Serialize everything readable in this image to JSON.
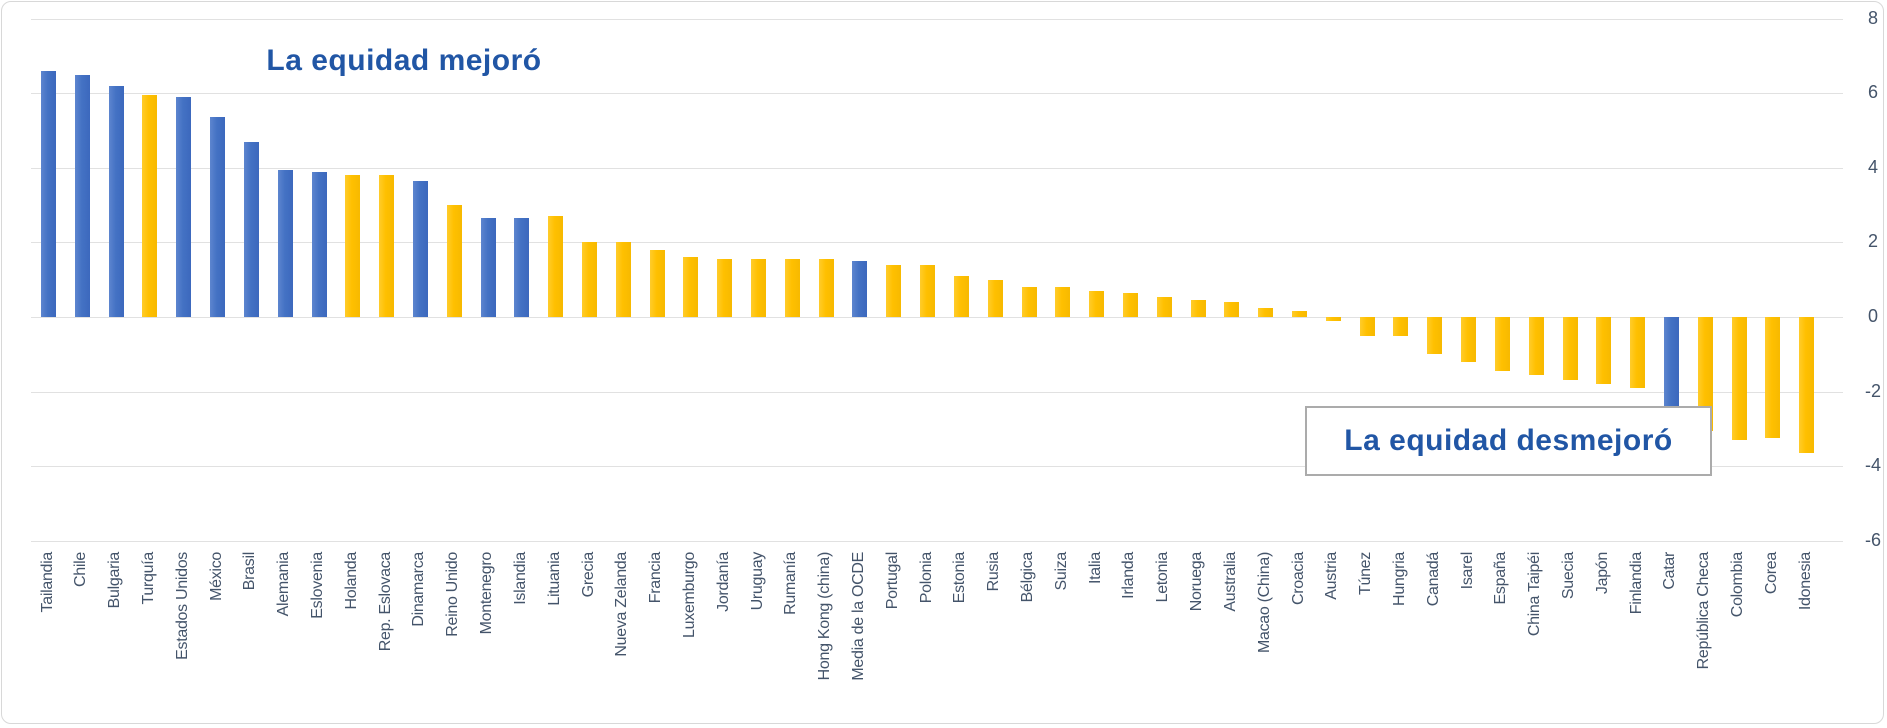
{
  "chart_data": {
    "type": "bar",
    "title": "",
    "annotations": {
      "improved": "La equidad mejoró",
      "worsened": "La equidad desmejoró"
    },
    "y_axis": {
      "min": -6,
      "max": 8,
      "ticks": [
        8,
        6,
        4,
        2,
        0,
        -2,
        -4,
        -6
      ],
      "grid": true,
      "tick_side": "right"
    },
    "colors": {
      "blue": "#4472C4",
      "yellow": "#FFC000",
      "annotation_text": "#2156A5",
      "axis_text": "#44546A",
      "gridline": "#e1e1e1"
    },
    "bars": [
      {
        "label": "Tailandia",
        "value": 6.6,
        "color": "blue"
      },
      {
        "label": "Chile",
        "value": 6.5,
        "color": "blue"
      },
      {
        "label": "Bulgaria",
        "value": 6.2,
        "color": "blue"
      },
      {
        "label": "Turquía",
        "value": 5.95,
        "color": "yellow"
      },
      {
        "label": "Estados Unidos",
        "value": 5.9,
        "color": "blue"
      },
      {
        "label": "México",
        "value": 5.35,
        "color": "blue"
      },
      {
        "label": "Brasil",
        "value": 4.7,
        "color": "blue"
      },
      {
        "label": "Alemania",
        "value": 3.95,
        "color": "blue"
      },
      {
        "label": "Eslovenia",
        "value": 3.9,
        "color": "blue"
      },
      {
        "label": "Holanda",
        "value": 3.8,
        "color": "yellow"
      },
      {
        "label": "Rep. Eslovaca",
        "value": 3.8,
        "color": "yellow"
      },
      {
        "label": "Dinamarca",
        "value": 3.65,
        "color": "blue"
      },
      {
        "label": "Reino Unido",
        "value": 3.0,
        "color": "yellow"
      },
      {
        "label": "Montenegro",
        "value": 2.65,
        "color": "blue"
      },
      {
        "label": "Islandia",
        "value": 2.65,
        "color": "blue"
      },
      {
        "label": "Lituania",
        "value": 2.7,
        "color": "yellow"
      },
      {
        "label": "Grecia",
        "value": 2.0,
        "color": "yellow"
      },
      {
        "label": "Nueva Zelanda",
        "value": 2.0,
        "color": "yellow"
      },
      {
        "label": "Francia",
        "value": 1.8,
        "color": "yellow"
      },
      {
        "label": "Luxemburgo",
        "value": 1.6,
        "color": "yellow"
      },
      {
        "label": "Jordanía",
        "value": 1.55,
        "color": "yellow"
      },
      {
        "label": "Uruguay",
        "value": 1.55,
        "color": "yellow"
      },
      {
        "label": "Rumanía",
        "value": 1.55,
        "color": "yellow"
      },
      {
        "label": "Hong Kong (china)",
        "value": 1.55,
        "color": "yellow"
      },
      {
        "label": "Media de la OCDE",
        "value": 1.5,
        "color": "blue"
      },
      {
        "label": "Portugal",
        "value": 1.4,
        "color": "yellow"
      },
      {
        "label": "Polonia",
        "value": 1.4,
        "color": "yellow"
      },
      {
        "label": "Estonia",
        "value": 1.1,
        "color": "yellow"
      },
      {
        "label": "Rusia",
        "value": 1.0,
        "color": "yellow"
      },
      {
        "label": "Bélgica",
        "value": 0.8,
        "color": "yellow"
      },
      {
        "label": "Suiza",
        "value": 0.8,
        "color": "yellow"
      },
      {
        "label": "Italia",
        "value": 0.7,
        "color": "yellow"
      },
      {
        "label": "Irlanda",
        "value": 0.65,
        "color": "yellow"
      },
      {
        "label": "Letonia",
        "value": 0.55,
        "color": "yellow"
      },
      {
        "label": "Noruega",
        "value": 0.45,
        "color": "yellow"
      },
      {
        "label": "Australia",
        "value": 0.4,
        "color": "yellow"
      },
      {
        "label": "Macao (China)",
        "value": 0.25,
        "color": "yellow"
      },
      {
        "label": "Croacia",
        "value": 0.15,
        "color": "yellow"
      },
      {
        "label": "Austria",
        "value": -0.1,
        "color": "yellow"
      },
      {
        "label": "Túnez",
        "value": -0.5,
        "color": "yellow"
      },
      {
        "label": "Hungria",
        "value": -0.5,
        "color": "yellow"
      },
      {
        "label": "Canadá",
        "value": -1.0,
        "color": "yellow"
      },
      {
        "label": "Isarel",
        "value": -1.2,
        "color": "yellow"
      },
      {
        "label": "España",
        "value": -1.45,
        "color": "yellow"
      },
      {
        "label": "China Taipéi",
        "value": -1.55,
        "color": "yellow"
      },
      {
        "label": "Suecia",
        "value": -1.7,
        "color": "yellow"
      },
      {
        "label": "Japón",
        "value": -1.8,
        "color": "yellow"
      },
      {
        "label": "Finlandia",
        "value": -1.9,
        "color": "yellow"
      },
      {
        "label": "Catar",
        "value": -2.4,
        "color": "blue"
      },
      {
        "label": "República Checa",
        "value": -3.05,
        "color": "yellow"
      },
      {
        "label": "Colombia",
        "value": -3.3,
        "color": "yellow"
      },
      {
        "label": "Corea",
        "value": -3.25,
        "color": "yellow"
      },
      {
        "label": "Idonesia",
        "value": -3.65,
        "color": "yellow"
      }
    ]
  }
}
